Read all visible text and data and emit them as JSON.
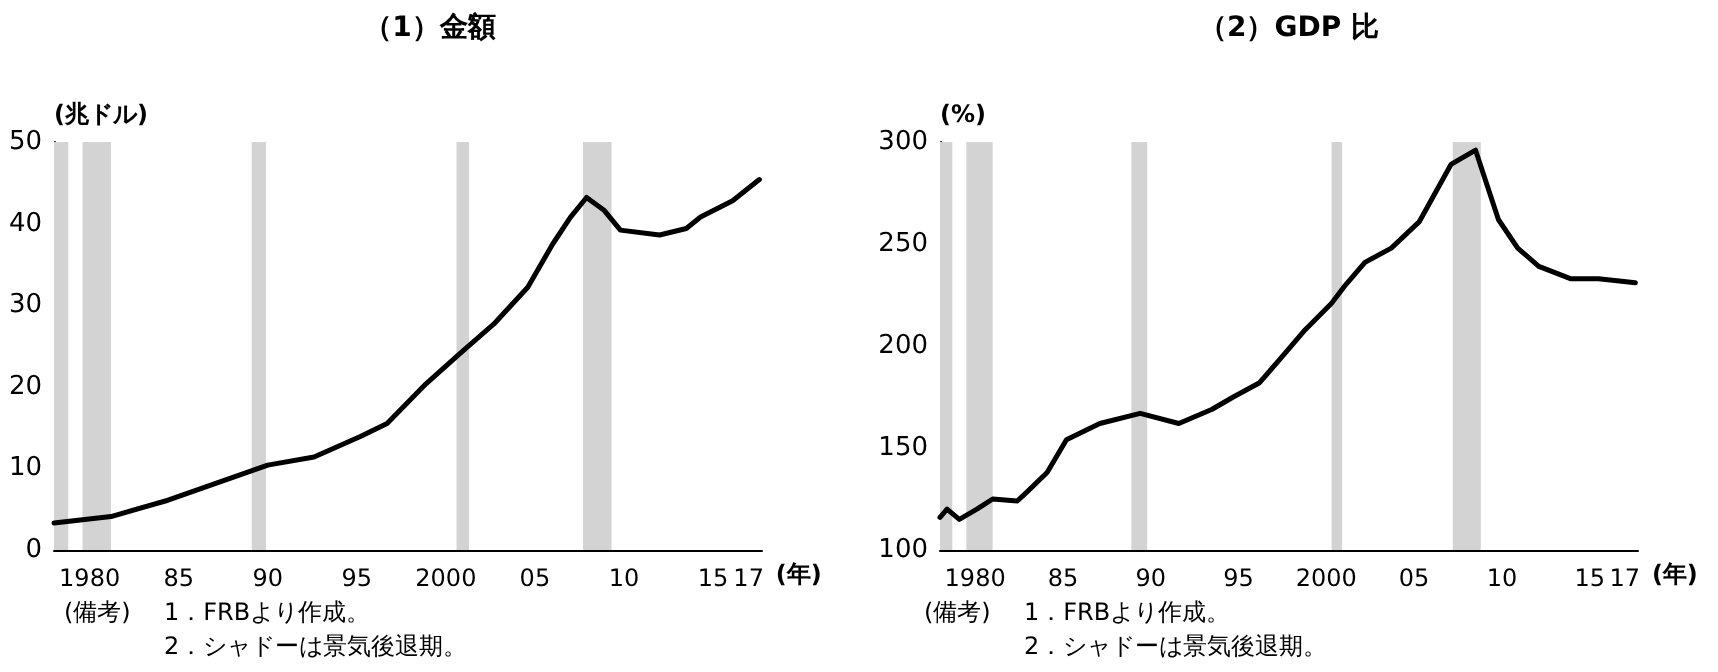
{
  "chart_data": [
    {
      "type": "line",
      "title": "（1）金額",
      "ylabel": "(兆ドル)",
      "xlabel": "(年)",
      "x": [
        1978,
        1981.2,
        1984.4,
        1989.2,
        1990,
        1992.6,
        1995.2,
        1996.7,
        1998.9,
        2000.8,
        2002.7,
        2004.6,
        2006,
        2007,
        2007.9,
        2008.9,
        2009.8,
        2012,
        2013.5,
        2014.3,
        2016.1,
        2017.6
      ],
      "series": [
        {
          "color": "#000000",
          "values": [
            3.3,
            4.1,
            6.1,
            9.8,
            10.4,
            11.4,
            13.9,
            15.5,
            20.4,
            24.1,
            27.7,
            32.2,
            37.5,
            40.8,
            43.2,
            41.6,
            39.2,
            38.6,
            39.4,
            40.8,
            42.8,
            45.4
          ]
        }
      ],
      "xlim": [
        1978,
        2017.75
      ],
      "ylim": [
        0,
        50
      ],
      "xticks": [
        {
          "value": 1980,
          "label": "1980"
        },
        {
          "value": 1985,
          "label": "85"
        },
        {
          "value": 1990,
          "label": "90"
        },
        {
          "value": 1995,
          "label": "95"
        },
        {
          "value": 2000,
          "label": "2000"
        },
        {
          "value": 2005,
          "label": "05"
        },
        {
          "value": 2010,
          "label": "10"
        },
        {
          "value": 2015,
          "label": "15"
        },
        {
          "value": 2017,
          "label": "17"
        }
      ],
      "yticks": [
        0,
        10,
        20,
        30,
        40,
        50
      ],
      "bands": [
        {
          "axis": "x",
          "from": 1978,
          "to": 1978.8,
          "color": "#d3d3d3"
        },
        {
          "axis": "x",
          "from": 1979.6,
          "to": 1981.2,
          "color": "#d3d3d3"
        },
        {
          "axis": "x",
          "from": 1989.1,
          "to": 1989.9,
          "color": "#d3d3d3"
        },
        {
          "axis": "x",
          "from": 2000.6,
          "to": 2001.3,
          "color": "#d3d3d3"
        },
        {
          "axis": "x",
          "from": 2007.7,
          "to": 2009.3,
          "color": "#d3d3d3"
        }
      ],
      "annotations": [
        "(備考)",
        "1．FRBより作成。",
        "2．シャドーは景気後退期。"
      ],
      "marker": "none",
      "grid": false
    },
    {
      "type": "line",
      "title": "（2）GDP 比",
      "ylabel": "(%)",
      "xlabel": "(年)",
      "x": [
        1978,
        1978.4,
        1979.1,
        1980.1,
        1981,
        1982.4,
        1982.9,
        1984.1,
        1985.2,
        1987.1,
        1989.4,
        1991.6,
        1993.5,
        1994.7,
        1996.2,
        1997.3,
        1998.8,
        2000.3,
        2001.1,
        2002.2,
        2003.7,
        2005.3,
        2007.1,
        2008.5,
        2009.8,
        2010.9,
        2012.1,
        2013.9,
        2015.5,
        2017.6
      ],
      "series": [
        {
          "color": "#000000",
          "values": [
            116,
            120,
            115,
            120,
            125,
            124,
            128,
            138,
            154,
            162,
            167,
            162,
            169,
            175,
            182,
            193,
            208,
            221,
            230,
            241,
            248,
            261,
            289,
            296,
            262,
            248,
            239,
            233,
            233,
            231
          ]
        }
      ],
      "xlim": [
        1978,
        2017.75
      ],
      "ylim": [
        100,
        300
      ],
      "xticks": [
        {
          "value": 1980,
          "label": "1980"
        },
        {
          "value": 1985,
          "label": "85"
        },
        {
          "value": 1990,
          "label": "90"
        },
        {
          "value": 1995,
          "label": "95"
        },
        {
          "value": 2000,
          "label": "2000"
        },
        {
          "value": 2005,
          "label": "05"
        },
        {
          "value": 2010,
          "label": "10"
        },
        {
          "value": 2015,
          "label": "15"
        },
        {
          "value": 2017,
          "label": "17"
        }
      ],
      "yticks": [
        100,
        150,
        200,
        250,
        300
      ],
      "bands": [
        {
          "axis": "x",
          "from": 1978,
          "to": 1978.7,
          "color": "#d3d3d3"
        },
        {
          "axis": "x",
          "from": 1979.5,
          "to": 1981,
          "color": "#d3d3d3"
        },
        {
          "axis": "x",
          "from": 1988.9,
          "to": 1989.8,
          "color": "#d3d3d3"
        },
        {
          "axis": "x",
          "from": 2000.3,
          "to": 2000.9,
          "color": "#d3d3d3"
        },
        {
          "axis": "x",
          "from": 2007.2,
          "to": 2008.8,
          "color": "#d3d3d3"
        }
      ],
      "annotations": [
        "(備考)",
        "1．FRBより作成。",
        "2．シャドーは景気後退期。"
      ],
      "marker": "none",
      "grid": false
    }
  ]
}
